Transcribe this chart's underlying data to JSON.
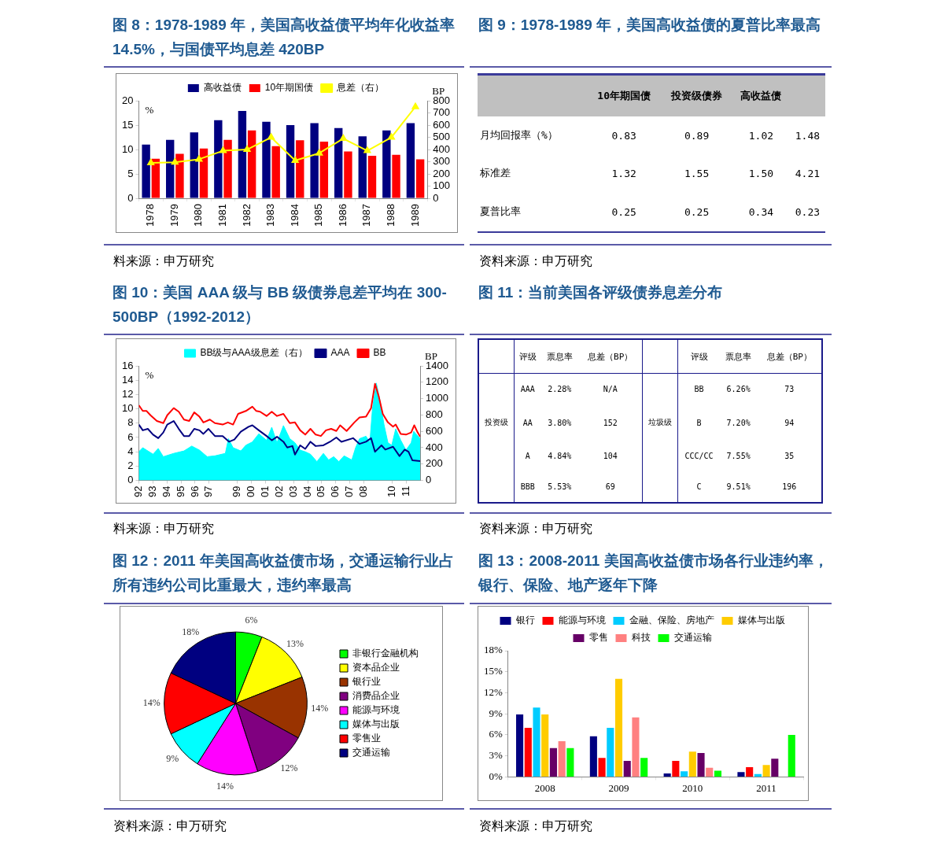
{
  "chart_data": [
    {
      "type": "bar",
      "title": "图 8：1978-1989 年，美国高收益债平均年化收益率 14.5%，与国债平均息差 420BP",
      "ylabel": "%",
      "y2label": "BP",
      "categories": [
        "1978",
        "1979",
        "1980",
        "1981",
        "1982",
        "1983",
        "1984",
        "1985",
        "1986",
        "1987",
        "1988",
        "1989"
      ],
      "series": [
        {
          "name": "高收益债",
          "color": "#000080",
          "values": [
            11.0,
            12.0,
            13.5,
            16.0,
            17.9,
            15.7,
            15.0,
            15.4,
            14.4,
            12.7,
            13.9,
            15.4
          ]
        },
        {
          "name": "10年期国债",
          "color": "#ff0000",
          "values": [
            8.1,
            9.1,
            10.2,
            12.0,
            13.9,
            10.7,
            11.9,
            11.6,
            9.6,
            8.7,
            8.9,
            8.0
          ]
        },
        {
          "name": "息差（右）",
          "type": "line",
          "axis": "y2",
          "color": "#ffff00",
          "values": [
            290,
            295,
            320,
            390,
            400,
            500,
            310,
            370,
            490,
            390,
            500,
            750
          ]
        }
      ],
      "ylim": [
        0,
        20
      ],
      "yticks": [
        0,
        5,
        10,
        15,
        20
      ],
      "y2lim": [
        0,
        800
      ],
      "y2ticks": [
        0,
        100,
        200,
        300,
        400,
        500,
        600,
        700,
        800
      ],
      "marker": "triangle",
      "legend": "top",
      "annotations": [
        "料来源：申万研究"
      ]
    },
    {
      "type": "other",
      "title": "图 9：1978-1989 年，美国高收益债的夏普比率最高",
      "categories": [
        "10年期国债",
        "投资级债券",
        "高收益债",
        null
      ],
      "y_categories": [
        "月均回报率（%）",
        "标准差",
        "夏普比率"
      ],
      "cell_labels": [
        [
          "0.83",
          "0.89",
          "1.02",
          "1.48"
        ],
        [
          "1.32",
          "1.55",
          "1.50",
          "4.21"
        ],
        [
          "0.25",
          "0.25",
          "0.34",
          "0.23"
        ]
      ],
      "annotations": [
        "资料来源：申万研究"
      ]
    },
    {
      "type": "line",
      "title": "图 10：美国 AAA 级与 BB 级债券息差平均在 300-500BP（1992-2012）",
      "ylabel": "%",
      "y2label": "BP",
      "xlim": [
        1992,
        2012
      ],
      "xticks": [
        {
          "value": 1992,
          "label": "92"
        },
        {
          "value": 1993,
          "label": "93"
        },
        {
          "value": 1994,
          "label": "94"
        },
        {
          "value": 1995,
          "label": "95"
        },
        {
          "value": 1996,
          "label": "96"
        },
        {
          "value": 1997,
          "label": "97"
        },
        {
          "value": 1999,
          "label": "99"
        },
        {
          "value": 2000,
          "label": "00"
        },
        {
          "value": 2001,
          "label": "01"
        },
        {
          "value": 2002,
          "label": "02"
        },
        {
          "value": 2003,
          "label": "03"
        },
        {
          "value": 2004,
          "label": "04"
        },
        {
          "value": 2005,
          "label": "05"
        },
        {
          "value": 2006,
          "label": "06"
        },
        {
          "value": 2007,
          "label": "07"
        },
        {
          "value": 2008,
          "label": "08"
        },
        {
          "value": 2010,
          "label": "10"
        },
        {
          "value": 2011,
          "label": "11"
        }
      ],
      "ylim": [
        0,
        16
      ],
      "yticks": [
        0,
        2,
        4,
        6,
        8,
        10,
        12,
        14,
        16
      ],
      "y2lim": [
        0,
        1400
      ],
      "y2ticks": [
        0,
        200,
        400,
        600,
        800,
        1000,
        1200,
        1400
      ],
      "legend": "top",
      "series": [
        {
          "name": "BB级与AAA级息差（右）",
          "type": "area",
          "axis": "y2",
          "color": "#00ffff",
          "x": [
            1992.0,
            1992.28,
            1992.55,
            1993.01,
            1993.38,
            1993.74,
            1994.48,
            1995.21,
            1995.76,
            1996.31,
            1996.86,
            1997.41,
            1998.15,
            1998.37,
            1998.7,
            1999.25,
            1999.61,
            2000.07,
            2000.53,
            2001.08,
            2001.45,
            2001.82,
            2002.28,
            2002.73,
            2003.1,
            2003.47,
            2003.83,
            2004.2,
            2004.66,
            2005.12,
            2005.49,
            2005.85,
            2006.22,
            2006.59,
            2007.14,
            2007.41,
            2007.69,
            2008.15,
            2008.42,
            2008.61,
            2008.88,
            2009.16,
            2009.43,
            2009.71,
            2009.98,
            2010.26,
            2010.62,
            2010.99,
            2011.36,
            2011.54,
            2012.0
          ],
          "values": [
            350,
            400,
            370,
            320,
            390,
            290,
            330,
            360,
            420,
            370,
            290,
            300,
            330,
            510,
            400,
            360,
            430,
            470,
            570,
            490,
            650,
            460,
            670,
            510,
            460,
            370,
            350,
            320,
            230,
            330,
            250,
            290,
            230,
            300,
            250,
            400,
            510,
            540,
            460,
            880,
            1190,
            960,
            680,
            460,
            430,
            630,
            490,
            370,
            460,
            600,
            510
          ]
        },
        {
          "name": "AAA",
          "color": "#000080",
          "x": [
            1992.0,
            1992.28,
            1992.64,
            1993.01,
            1993.38,
            1993.74,
            1994.02,
            1994.48,
            1994.84,
            1995.21,
            1995.58,
            1995.94,
            1996.31,
            1996.59,
            1996.95,
            1997.41,
            1997.96,
            1998.42,
            1998.79,
            1999.25,
            1999.8,
            2000.07,
            2000.53,
            2001.08,
            2001.45,
            2001.82,
            2002.28,
            2002.55,
            2002.92,
            2003.1,
            2003.47,
            2003.83,
            2004.2,
            2004.57,
            2005.12,
            2005.67,
            2006.04,
            2006.4,
            2007.23,
            2007.69,
            2008.15,
            2008.51,
            2008.79,
            2009.25,
            2009.52,
            2010.07,
            2010.53,
            2010.9,
            2011.17,
            2011.45,
            2012.0
          ],
          "values": [
            7.8,
            7.0,
            7.2,
            6.4,
            5.9,
            6.7,
            7.8,
            8.3,
            7.2,
            6.2,
            6.2,
            7.2,
            7.0,
            6.5,
            7.2,
            6.2,
            6.2,
            5.4,
            5.7,
            6.8,
            7.5,
            7.7,
            7.0,
            6.2,
            5.6,
            6.1,
            5.4,
            4.6,
            4.8,
            3.6,
            4.9,
            4.4,
            5.4,
            4.8,
            4.9,
            5.5,
            6.0,
            5.4,
            5.9,
            5.1,
            5.4,
            5.9,
            4.0,
            4.9,
            4.3,
            4.7,
            3.4,
            4.3,
            4.0,
            2.8,
            2.7
          ]
        },
        {
          "name": "BB",
          "color": "#ff0000",
          "x": [
            1992.0,
            1992.28,
            1992.55,
            1992.83,
            1993.28,
            1993.74,
            1994.02,
            1994.48,
            1994.84,
            1995.21,
            1995.58,
            1995.94,
            1996.31,
            1996.59,
            1997.05,
            1997.41,
            1997.96,
            1998.33,
            1998.7,
            1999.06,
            1999.61,
            2000.07,
            2000.35,
            2000.62,
            2001.08,
            2001.45,
            2001.82,
            2002.28,
            2002.73,
            2003.1,
            2003.47,
            2003.83,
            2004.2,
            2004.57,
            2004.94,
            2005.3,
            2005.67,
            2006.04,
            2006.31,
            2006.77,
            2007.32,
            2007.69,
            2008.15,
            2008.51,
            2008.79,
            2009.06,
            2009.34,
            2009.71,
            2010.07,
            2010.26,
            2010.62,
            2010.99,
            2011.36,
            2011.58,
            2011.82,
            2012.0
          ],
          "values": [
            10.5,
            9.7,
            9.7,
            9.1,
            8.3,
            8.0,
            9.1,
            10.1,
            9.6,
            8.5,
            8.3,
            9.5,
            8.9,
            8.1,
            8.5,
            8.0,
            7.8,
            8.1,
            7.8,
            9.3,
            9.7,
            10.3,
            9.7,
            9.6,
            9.0,
            9.6,
            9.0,
            9.3,
            8.0,
            8.1,
            7.0,
            6.4,
            7.2,
            6.4,
            6.2,
            7.0,
            7.2,
            6.9,
            7.7,
            6.9,
            8.1,
            8.8,
            8.9,
            10.1,
            13.5,
            11.7,
            9.3,
            8.1,
            7.5,
            7.8,
            6.5,
            6.4,
            6.7,
            7.7,
            6.7,
            6.1
          ]
        }
      ],
      "annotations": [
        "料来源：申万研究"
      ]
    },
    {
      "type": "other",
      "title": "图 11：当前美国各评级债券息差分布",
      "categories": [
        null,
        "评级",
        "票息率",
        "息差（BP）",
        null,
        "评级",
        "票息率",
        "息差（BP）"
      ],
      "cell_labels": [
        [
          null,
          "AAA",
          "2.28%",
          "N/A",
          null,
          "BB",
          "6.26%",
          "73"
        ],
        [
          "投资级",
          "AA",
          "3.80%",
          "152",
          "垃圾级",
          "B",
          "7.20%",
          "94"
        ],
        [
          null,
          "A",
          "4.84%",
          "104",
          null,
          "CCC/CC",
          "7.55%",
          "35"
        ],
        [
          null,
          "BBB",
          "5.53%",
          "69",
          null,
          "C",
          "9.51%",
          "196"
        ]
      ],
      "annotations": [
        "资料来源：申万研究"
      ]
    },
    {
      "type": "pie",
      "title": "图 12：2011 年美国高收益债市场，交通运输行业占所有违约公司比重最大，违约率最高",
      "categories": [
        "非银行金融机构",
        "资本品企业",
        "银行业",
        "消费品企业",
        "能源与环境",
        "媒体与出版",
        "零售业",
        "交通运输"
      ],
      "values": [
        6,
        13,
        14,
        12,
        14,
        9,
        14,
        18
      ],
      "value_labels": [
        "6%",
        "13%",
        "14%",
        "12%",
        "14%",
        "9%",
        "14%",
        "18%"
      ],
      "colors": [
        "#00ff00",
        "#ffff00",
        "#993300",
        "#800080",
        "#ff00ff",
        "#00ffff",
        "#ff0000",
        "#000080"
      ],
      "legend": "right",
      "annotations": [
        "资料来源：申万研究"
      ]
    },
    {
      "type": "bar",
      "title": "图 13：2008-2011 美国高收益债市场各行业违约率，银行、保险、地产逐年下降",
      "categories": [
        "2008",
        "2009",
        "2010",
        "2011"
      ],
      "series": [
        {
          "name": "银行",
          "color": "#000080",
          "values": [
            8.9,
            5.8,
            0.5,
            0.7
          ]
        },
        {
          "name": "能源与环境",
          "color": "#ff0000",
          "values": [
            7.0,
            2.7,
            2.3,
            1.4
          ]
        },
        {
          "name": "金融、保险、房地产",
          "color": "#00ccff",
          "values": [
            9.9,
            7.0,
            0.8,
            0.4
          ]
        },
        {
          "name": "媒体与出版",
          "color": "#ffcc00",
          "values": [
            8.9,
            14.0,
            3.6,
            1.7
          ]
        },
        {
          "name": "零售",
          "color": "#660066",
          "values": [
            4.1,
            2.3,
            3.4,
            2.6
          ]
        },
        {
          "name": "科技",
          "color": "#ff8080",
          "values": [
            5.1,
            8.5,
            1.3,
            0
          ]
        },
        {
          "name": "交通运输",
          "color": "#00ff00",
          "values": [
            4.1,
            2.7,
            0.9,
            6.0
          ]
        }
      ],
      "ylim": [
        0,
        18
      ],
      "yticks": [
        {
          "value": 0,
          "label": "0%"
        },
        {
          "value": 3,
          "label": "3%"
        },
        {
          "value": 6,
          "label": "6%"
        },
        {
          "value": 9,
          "label": "9%"
        },
        {
          "value": 12,
          "label": "12%"
        },
        {
          "value": 15,
          "label": "15%"
        },
        {
          "value": 18,
          "label": "18%"
        }
      ],
      "legend": "top",
      "annotations": [
        "资料来源：申万研究"
      ]
    }
  ]
}
